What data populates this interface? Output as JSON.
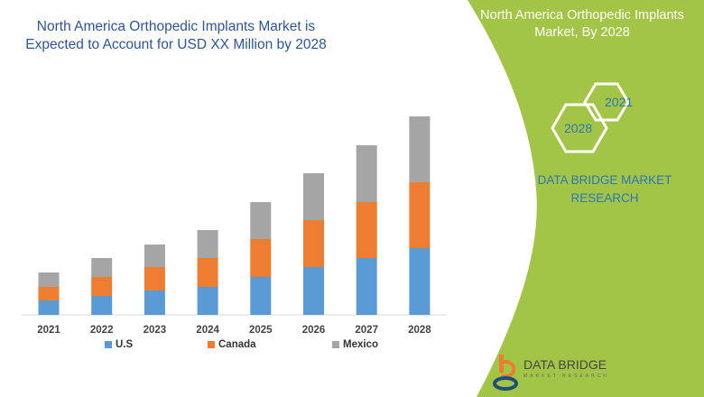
{
  "header": {
    "title": "North America Orthopedic Implants Market is Expected to Account for USD XX Million by 2028"
  },
  "side_panel": {
    "title": "North America Orthopedic Implants Market, By 2028",
    "hex_years": [
      "2021",
      "2028"
    ],
    "brand_text": "DATA BRIDGE MARKET RESEARCH",
    "logo_text": "DATA BRIDGE",
    "logo_sub": "MARKET RESEARCH",
    "color": "#a2c548"
  },
  "chart_data": {
    "type": "bar",
    "stacked": true,
    "categories": [
      "2021",
      "2022",
      "2023",
      "2024",
      "2025",
      "2026",
      "2027",
      "2028"
    ],
    "series": [
      {
        "name": "U.S",
        "color": "#5b9bd5",
        "values": [
          16,
          21,
          27,
          31,
          42,
          53,
          63,
          74
        ]
      },
      {
        "name": "Canada",
        "color": "#ed7d31",
        "values": [
          15,
          21,
          26,
          32,
          42,
          52,
          62,
          73
        ]
      },
      {
        "name": "Mexico",
        "color": "#a5a5a5",
        "values": [
          16,
          21,
          25,
          31,
          41,
          52,
          63,
          73
        ]
      }
    ],
    "ylim": [
      0,
      220
    ],
    "grid": false,
    "legend": "bottom",
    "y_axis_labels": false
  }
}
